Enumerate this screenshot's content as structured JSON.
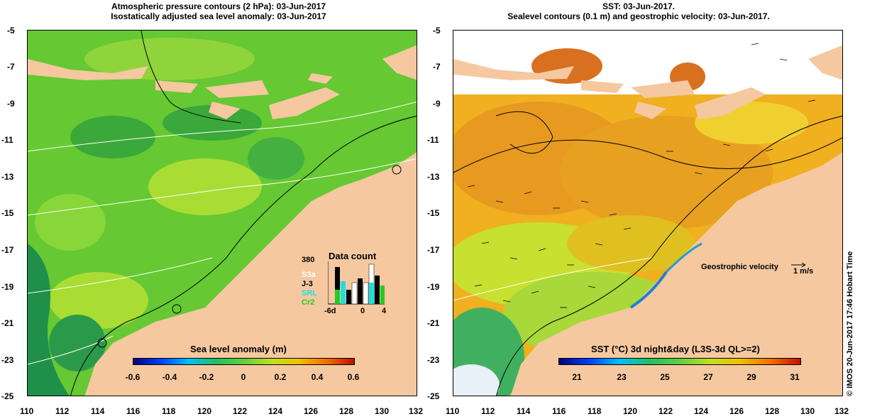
{
  "left": {
    "title_line1": "Atmospheric pressure contours (2 hPa): 03-Jun-2017",
    "title_line2": "Isostatically adjusted sea level anomaly: 03-Jun-2017",
    "colorbar_title": "Sea level anomaly (m)",
    "colorbar_ticks": [
      "-0.6",
      "-0.4",
      "-0.2",
      "0",
      "0.2",
      "0.4",
      "0.6"
    ],
    "inset": {
      "title": "Data count",
      "max": "380",
      "missions": [
        {
          "label": "S3a",
          "color": "#ffffff"
        },
        {
          "label": "J-3",
          "color": "#000000"
        },
        {
          "label": "SRL",
          "color": "#22dddd"
        },
        {
          "label": "Cr2",
          "color": "#22cc22"
        }
      ],
      "x_left": "-6d",
      "x_mid": "0",
      "x_right": "4"
    }
  },
  "right": {
    "title_line1": "SST: 03-Jun-2017.",
    "title_line2": "Sealevel contours (0.1 m) and geostrophic velocity: 03-Jun-2017.",
    "colorbar_title": "SST (°C) 3d night&day (L3S-3d QL>=2)",
    "colorbar_ticks": [
      "21",
      "23",
      "25",
      "27",
      "29",
      "31"
    ],
    "velocity_label": "Geostrophic velocity",
    "velocity_scale": "1 m/s"
  },
  "y_ticks": [
    "-5",
    "-7",
    "-9",
    "-11",
    "-13",
    "-15",
    "-17",
    "-19",
    "-21",
    "-23",
    "-25"
  ],
  "x_ticks": [
    "110",
    "112",
    "114",
    "116",
    "118",
    "120",
    "122",
    "124",
    "126",
    "128",
    "130",
    "132"
  ],
  "side_label": "© IMOS 20-Jun-2017 17:46 Hobart Time"
}
